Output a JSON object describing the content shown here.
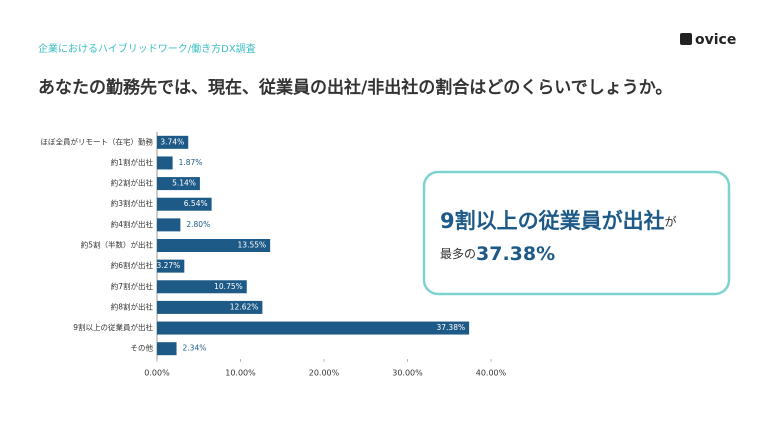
{
  "header": "企業におけるハイブリッドワーク/働き方DX調査",
  "logo": "ovice",
  "chart_data": {
    "type": "barh",
    "title": "あなたの勤務先では、現在、従業員の出社/非出社の割合はどのくらいでしょうか。",
    "categories": [
      "ほぼ全員がリモート（在宅）勤務",
      "約1割が出社",
      "約2割が出社",
      "約3割が出社",
      "約4割が出社",
      "約5割（半数）が出社",
      "約6割が出社",
      "約7割が出社",
      "約8割が出社",
      "9割以上の従業員が出社",
      "その他"
    ],
    "values": [
      3.74,
      1.87,
      5.14,
      6.54,
      2.8,
      13.55,
      3.27,
      10.75,
      12.62,
      37.38,
      2.34
    ],
    "value_labels": [
      "3.74%",
      "1.87%",
      "5.14%",
      "6.54%",
      "2.80%",
      "13.55%",
      "3.27%",
      "10.75%",
      "12.62%",
      "37.38%",
      "2.34%"
    ],
    "color": "#1d5a87",
    "xlim": [
      0,
      40
    ],
    "xticks": [
      {
        "value": 0,
        "label": "0.00%"
      },
      {
        "value": 10,
        "label": "10.00%"
      },
      {
        "value": 20,
        "label": "20.00%"
      },
      {
        "value": 30,
        "label": "30.00%"
      },
      {
        "value": 40,
        "label": "40.00%"
      }
    ],
    "annotation": {
      "headline": "9割以上の従業員が出社",
      "particle": "が",
      "lead": "最多の",
      "highlight": "37.38%"
    }
  }
}
